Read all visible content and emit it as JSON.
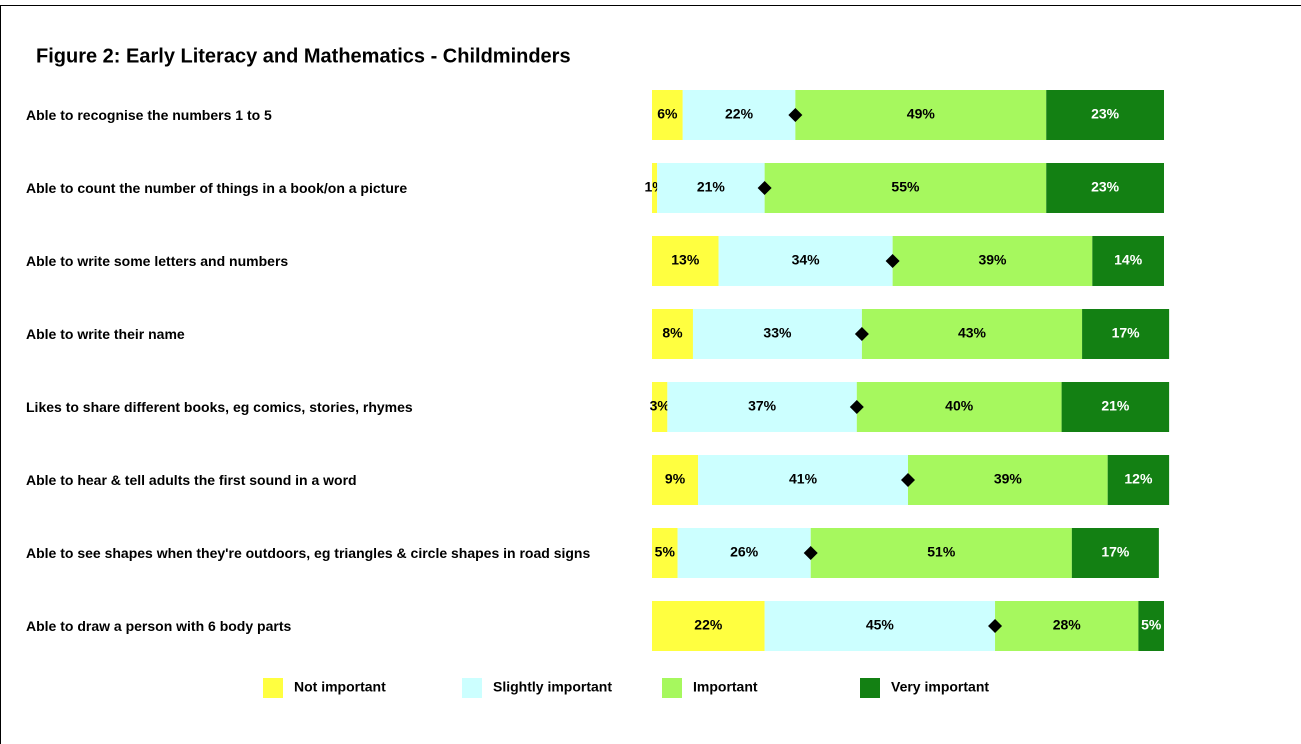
{
  "chart_data": {
    "type": "stacked_barh",
    "title": "Figure 2: Early Literacy and Mathematics - Childminders",
    "categories": [
      "Able to recognise the numbers 1 to 5",
      "Able to count the number of things in a book/on a picture",
      "Able to write some letters and numbers",
      "Able to write their name",
      "Likes to share different books, eg comics, stories, rhymes",
      "Able to hear & tell adults the first sound in a word",
      "Able to see shapes when they're outdoors,  eg triangles & circle shapes in road signs",
      "Able to draw a person with 6 body parts"
    ],
    "series": [
      {
        "name": "Not important",
        "color": "#ffff40",
        "text_color": "#000000",
        "values": [
          6,
          1,
          13,
          8,
          3,
          9,
          5,
          22
        ]
      },
      {
        "name": "Slightly important",
        "color": "#ccffff",
        "text_color": "#000000",
        "values": [
          22,
          21,
          34,
          33,
          37,
          41,
          26,
          45
        ]
      },
      {
        "name": "Important",
        "color": "#a6f85e",
        "text_color": "#000000",
        "values": [
          49,
          55,
          39,
          43,
          40,
          39,
          51,
          28
        ]
      },
      {
        "name": "Very important",
        "color": "#138013",
        "text_color": "#ffffff",
        "values": [
          23,
          23,
          14,
          17,
          21,
          12,
          17,
          5
        ]
      }
    ],
    "value_labels": [
      [
        "6%",
        "1%",
        "13%",
        "8%",
        "3%",
        "9%",
        "5%",
        "22%"
      ],
      [
        "22%",
        "21%",
        "34%",
        "33%",
        "37%",
        "41%",
        "26%",
        "45%"
      ],
      [
        "49%",
        "55%",
        "39%",
        "43%",
        "40%",
        "39%",
        "51%",
        "28%"
      ],
      [
        "23%",
        "23%",
        "14%",
        "17%",
        "21%",
        "12%",
        "17%",
        "5%"
      ]
    ],
    "xlim": [
      0,
      100
    ],
    "marker": "diamond"
  }
}
